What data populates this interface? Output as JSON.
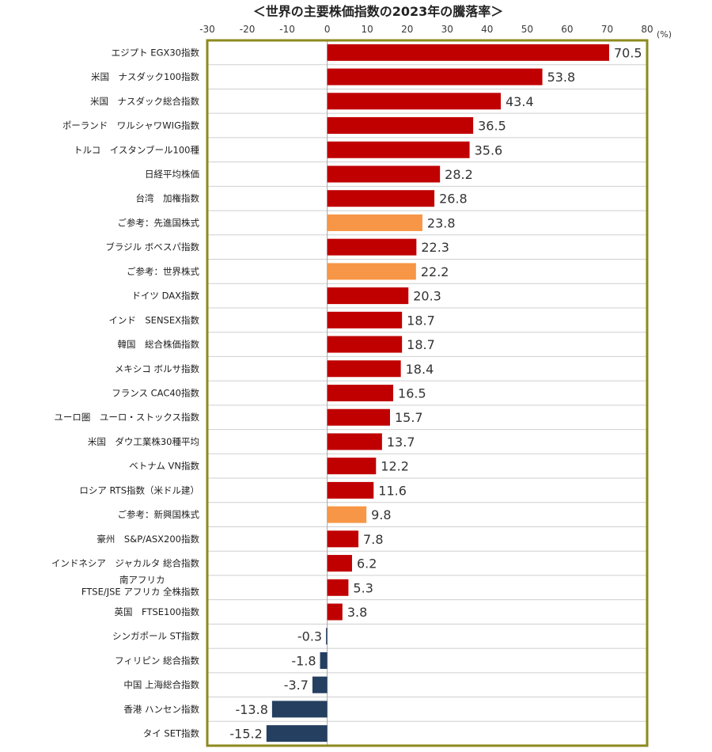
{
  "chart_data": {
    "type": "bar",
    "orientation": "horizontal",
    "title": "＜世界の主要株価指数の2023年の騰落率＞",
    "unit": "(%)",
    "xlim": [
      -30,
      80
    ],
    "xticks": [
      -30,
      -20,
      -10,
      0,
      10,
      20,
      30,
      40,
      50,
      60,
      70,
      80
    ],
    "grid": true,
    "colors": {
      "positive": "#c00000",
      "reference": "#f79646",
      "negative": "#243f60",
      "frame": "#8c8a1e"
    },
    "categories": [
      [
        "エジプト EGX30指数"
      ],
      [
        "米国　ナスダック100指数"
      ],
      [
        "米国　ナスダック総合指数"
      ],
      [
        "ポーランド　ワルシャワWIG指数"
      ],
      [
        "トルコ　イスタンブール100種"
      ],
      [
        "日経平均株価"
      ],
      [
        "台湾　加権指数"
      ],
      [
        "ご参考：先進国株式"
      ],
      [
        "ブラジル ボベスパ指数"
      ],
      [
        "ご参考：世界株式"
      ],
      [
        "ドイツ DAX指数"
      ],
      [
        "インド　SENSEX指数"
      ],
      [
        "韓国　総合株価指数"
      ],
      [
        "メキシコ ボルサ指数"
      ],
      [
        "フランス CAC40指数"
      ],
      [
        "ユーロ圏　ユーロ・ストックス指数"
      ],
      [
        "米国　ダウ工業株30種平均"
      ],
      [
        "ベトナム VN指数"
      ],
      [
        "ロシア RTS指数（米ドル建）"
      ],
      [
        "ご参考：新興国株式"
      ],
      [
        "豪州　S&P/ASX200指数"
      ],
      [
        "インドネシア　ジャカルタ 総合指数"
      ],
      [
        "南アフリカ",
        "FTSE/JSE アフリカ 全株指数"
      ],
      [
        "英国　FTSE100指数"
      ],
      [
        "シンガポール ST指数"
      ],
      [
        "フィリピン 総合指数"
      ],
      [
        "中国 上海総合指数"
      ],
      [
        "香港 ハンセン指数"
      ],
      [
        "タイ SET指数"
      ]
    ],
    "values": [
      70.5,
      53.8,
      43.4,
      36.5,
      35.6,
      28.2,
      26.8,
      23.8,
      22.3,
      22.2,
      20.3,
      18.7,
      18.7,
      18.4,
      16.5,
      15.7,
      13.7,
      12.2,
      11.6,
      9.8,
      7.8,
      6.2,
      5.3,
      3.8,
      -0.3,
      -1.8,
      -3.7,
      -13.8,
      -15.2
    ],
    "value_labels": [
      "70.5",
      "53.8",
      "43.4",
      "36.5",
      "35.6",
      "28.2",
      "26.8",
      "23.8",
      "22.3",
      "22.2",
      "20.3",
      "18.7",
      "18.7",
      "18.4",
      "16.5",
      "15.7",
      "13.7",
      "12.2",
      "11.6",
      "9.8",
      "7.8",
      "6.2",
      "5.3",
      "3.8",
      "-0.3",
      "-1.8",
      "-3.7",
      "-13.8",
      "-15.2"
    ],
    "bar_kind": [
      "positive",
      "positive",
      "positive",
      "positive",
      "positive",
      "positive",
      "positive",
      "reference",
      "positive",
      "reference",
      "positive",
      "positive",
      "positive",
      "positive",
      "positive",
      "positive",
      "positive",
      "positive",
      "positive",
      "reference",
      "positive",
      "positive",
      "positive",
      "positive",
      "negative",
      "negative",
      "negative",
      "negative",
      "negative"
    ]
  }
}
